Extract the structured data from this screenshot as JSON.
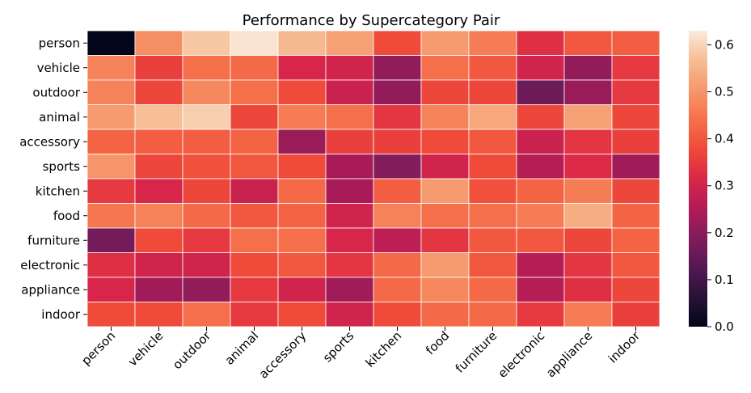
{
  "chart_data": {
    "type": "heatmap",
    "title": "Performance by Supercategory Pair",
    "xlabel": "",
    "ylabel": "",
    "rows": [
      "person",
      "vehicle",
      "outdoor",
      "animal",
      "accessory",
      "sports",
      "kitchen",
      "food",
      "furniture",
      "electronic",
      "appliance",
      "indoor"
    ],
    "columns": [
      "person",
      "vehicle",
      "outdoor",
      "animal",
      "accessory",
      "sports",
      "kitchen",
      "food",
      "furniture",
      "electronic",
      "appliance",
      "indoor"
    ],
    "values": [
      [
        0.0,
        0.49,
        0.58,
        0.62,
        0.56,
        0.52,
        0.38,
        0.51,
        0.46,
        0.33,
        0.4,
        0.41
      ],
      [
        0.47,
        0.36,
        0.44,
        0.43,
        0.31,
        0.3,
        0.21,
        0.44,
        0.4,
        0.3,
        0.21,
        0.35
      ],
      [
        0.47,
        0.37,
        0.48,
        0.44,
        0.38,
        0.29,
        0.21,
        0.37,
        0.37,
        0.16,
        0.22,
        0.35
      ],
      [
        0.51,
        0.57,
        0.59,
        0.37,
        0.46,
        0.44,
        0.34,
        0.47,
        0.53,
        0.37,
        0.52,
        0.37
      ],
      [
        0.42,
        0.41,
        0.41,
        0.42,
        0.22,
        0.36,
        0.36,
        0.38,
        0.4,
        0.29,
        0.34,
        0.36
      ],
      [
        0.5,
        0.37,
        0.39,
        0.4,
        0.38,
        0.24,
        0.19,
        0.3,
        0.38,
        0.26,
        0.32,
        0.23
      ],
      [
        0.35,
        0.31,
        0.37,
        0.29,
        0.43,
        0.24,
        0.41,
        0.51,
        0.39,
        0.42,
        0.46,
        0.37
      ],
      [
        0.45,
        0.47,
        0.43,
        0.4,
        0.42,
        0.3,
        0.47,
        0.44,
        0.44,
        0.46,
        0.54,
        0.42
      ],
      [
        0.17,
        0.38,
        0.35,
        0.44,
        0.44,
        0.31,
        0.27,
        0.34,
        0.4,
        0.4,
        0.37,
        0.42
      ],
      [
        0.33,
        0.3,
        0.3,
        0.38,
        0.4,
        0.34,
        0.43,
        0.51,
        0.4,
        0.26,
        0.34,
        0.4
      ],
      [
        0.31,
        0.23,
        0.21,
        0.35,
        0.3,
        0.23,
        0.43,
        0.48,
        0.43,
        0.26,
        0.33,
        0.37
      ],
      [
        0.38,
        0.38,
        0.44,
        0.35,
        0.38,
        0.3,
        0.38,
        0.43,
        0.43,
        0.35,
        0.46,
        0.36
      ]
    ],
    "colorbar": {
      "min": 0.0,
      "max": 0.63,
      "ticks": [
        "0.0",
        "0.1",
        "0.2",
        "0.3",
        "0.4",
        "0.5",
        "0.6"
      ],
      "tick_values": [
        0,
        0.1,
        0.2,
        0.3,
        0.4,
        0.5,
        0.6
      ]
    },
    "colormap": "rocket",
    "grid_lines_color": "#ffffff",
    "legend": "colorbar-right"
  }
}
